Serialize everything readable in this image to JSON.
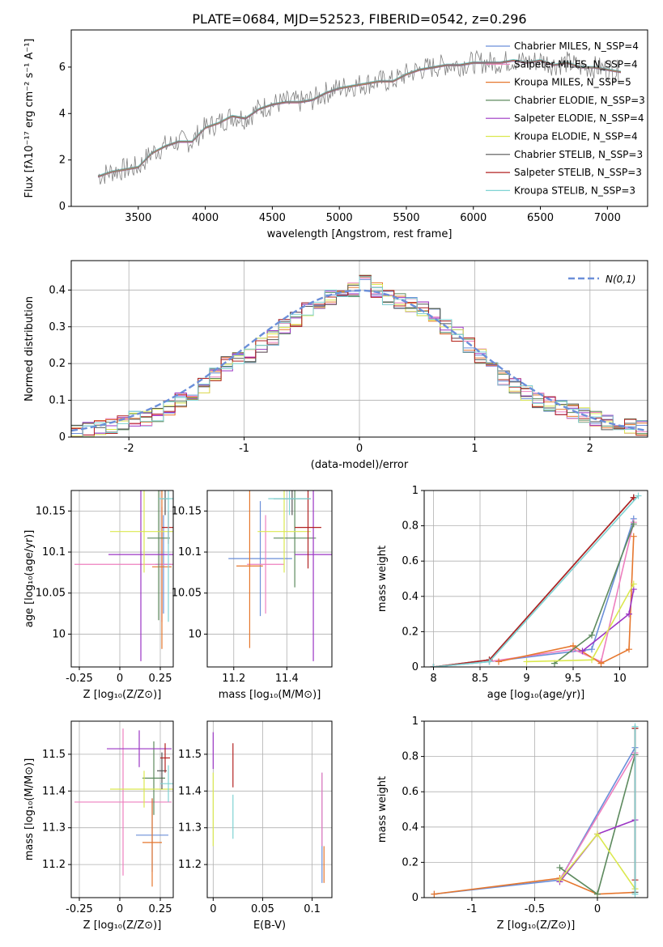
{
  "chart_data": [
    {
      "id": "spectrum",
      "type": "line",
      "title": "PLATE=0684, MJD=52523, FIBERID=0542, z=0.296",
      "xlabel": "wavelength [Angstrom, rest frame]",
      "ylabel": "Flux [fλ10⁻¹⁷ erg cm⁻² s⁻¹ A⁻¹]",
      "xlim": [
        3000,
        7300
      ],
      "ylim": [
        0,
        7.6
      ],
      "xticks": [
        3500,
        4000,
        4500,
        5000,
        5500,
        6000,
        6500,
        7000
      ],
      "yticks": [
        0,
        2,
        4,
        6
      ],
      "legend_position": "top-right",
      "grid": false,
      "data_series": {
        "name": "data",
        "x": [
          3200,
          3300,
          3400,
          3500,
          3600,
          3700,
          3800,
          3900,
          4000,
          4100,
          4200,
          4300,
          4400,
          4500,
          4600,
          4700,
          4800,
          4900,
          5000,
          5100,
          5200,
          5300,
          5400,
          5500,
          5600,
          5700,
          5800,
          5900,
          6000,
          6100,
          6200,
          6300,
          6400,
          6500,
          6600,
          6700,
          6800,
          6900,
          7000,
          7100
        ],
        "y": [
          1.3,
          1.5,
          1.6,
          1.7,
          2.3,
          2.6,
          2.8,
          2.8,
          3.4,
          3.6,
          3.9,
          3.8,
          4.2,
          4.4,
          4.5,
          4.5,
          4.6,
          4.9,
          5.1,
          5.2,
          5.3,
          5.4,
          5.4,
          5.7,
          5.9,
          6.0,
          6.1,
          6.1,
          6.2,
          6.2,
          6.2,
          6.3,
          6.2,
          6.3,
          6.1,
          6.2,
          6.0,
          6.0,
          5.9,
          5.8
        ]
      },
      "model_series": [
        {
          "name": "Chabrier MILES, N_SSP=4",
          "color": "#6b8fd9"
        },
        {
          "name": "Salpeter MILES, N_SSP=4",
          "color": "#ee7fbf"
        },
        {
          "name": "Kroupa MILES, N_SSP=5",
          "color": "#e6772e"
        },
        {
          "name": "Chabrier ELODIE, N_SSP=3",
          "color": "#5d8a5e"
        },
        {
          "name": "Salpeter ELODIE, N_SSP=4",
          "color": "#9b35c4"
        },
        {
          "name": "Kroupa ELODIE, N_SSP=4",
          "color": "#dbe84f"
        },
        {
          "name": "Chabrier STELIB, N_SSP=3",
          "color": "#555555"
        },
        {
          "name": "Salpeter STELIB, N_SSP=3",
          "color": "#b22222"
        },
        {
          "name": "Kroupa STELIB, N_SSP=3",
          "color": "#7fd3d3"
        }
      ]
    },
    {
      "id": "residuals",
      "type": "line",
      "xlabel": "(data-model)/error",
      "ylabel": "Normed distribution",
      "xlim": [
        -2.5,
        2.5
      ],
      "ylim": [
        0,
        0.48
      ],
      "xticks": [
        -2,
        -1,
        0,
        1,
        2
      ],
      "yticks": [
        0.0,
        0.1,
        0.2,
        0.3,
        0.4
      ],
      "grid": true,
      "legend_position": "top-right",
      "gaussian": {
        "name": "N(0,1)",
        "mean": 0,
        "sigma": 1,
        "color": "#6b8fd9"
      },
      "hist_edges": [
        -2.5,
        -2.4,
        -2.3,
        -2.2,
        -2.1,
        -2.0,
        -1.9,
        -1.8,
        -1.7,
        -1.6,
        -1.5,
        -1.4,
        -1.3,
        -1.2,
        -1.1,
        -1.0,
        -0.9,
        -0.8,
        -0.7,
        -0.6,
        -0.5,
        -0.4,
        -0.3,
        -0.2,
        -0.1,
        0.0,
        0.1,
        0.2,
        0.3,
        0.4,
        0.5,
        0.6,
        0.7,
        0.8,
        0.9,
        1.0,
        1.1,
        1.2,
        1.3,
        1.4,
        1.5,
        1.6,
        1.7,
        1.8,
        1.9,
        2.0,
        2.1,
        2.2,
        2.3,
        2.4,
        2.5
      ],
      "hist_values": [
        0.015,
        0.02,
        0.025,
        0.03,
        0.04,
        0.05,
        0.05,
        0.06,
        0.08,
        0.1,
        0.12,
        0.14,
        0.17,
        0.2,
        0.21,
        0.22,
        0.25,
        0.27,
        0.3,
        0.32,
        0.35,
        0.37,
        0.38,
        0.39,
        0.4,
        0.42,
        0.4,
        0.38,
        0.37,
        0.36,
        0.35,
        0.33,
        0.3,
        0.28,
        0.25,
        0.22,
        0.19,
        0.16,
        0.14,
        0.12,
        0.1,
        0.09,
        0.08,
        0.07,
        0.06,
        0.05,
        0.04,
        0.035,
        0.03,
        0.025
      ]
    },
    {
      "id": "age-vs-Z",
      "type": "scatter",
      "xlabel": "Z [log₁₀(Z/Z⊙)]",
      "ylabel": "age  [log₁₀(age/yr)]",
      "xlim": [
        -0.3,
        0.33
      ],
      "ylim": [
        9.96,
        10.175
      ],
      "xticks": [
        -0.25,
        0.0,
        0.25
      ],
      "yticks": [
        10.0,
        10.05,
        10.1,
        10.15
      ],
      "grid": true,
      "points": [
        {
          "series": "Chabrier MILES",
          "x": 0.27,
          "y": 10.085,
          "xerr": 0.05,
          "yerr": 0.06
        },
        {
          "series": "Salpeter MILES",
          "x": 0.26,
          "y": 10.085,
          "xerr": 0.54,
          "yerr": 0.07
        },
        {
          "series": "Kroupa MILES",
          "x": 0.26,
          "y": 10.082,
          "xerr": 0.06,
          "yerr": 0.1
        },
        {
          "series": "Chabrier ELODIE",
          "x": 0.24,
          "y": 10.117,
          "xerr": 0.07,
          "yerr": 0.1
        },
        {
          "series": "Salpeter ELODIE",
          "x": 0.13,
          "y": 10.097,
          "xerr": 0.2,
          "yerr": 0.13
        },
        {
          "series": "Kroupa ELODIE",
          "x": 0.15,
          "y": 10.125,
          "xerr": 0.21,
          "yerr": 0.05
        },
        {
          "series": "Chabrier STELIB",
          "x": 0.28,
          "y": 10.165,
          "xerr": 0.02,
          "yerr": 0.02
        },
        {
          "series": "Salpeter STELIB",
          "x": 0.3,
          "y": 10.13,
          "xerr": 0.04,
          "yerr": 0.02
        },
        {
          "series": "Kroupa STELIB",
          "x": 0.3,
          "y": 10.165,
          "xerr": 0.06,
          "yerr": 0.15
        }
      ]
    },
    {
      "id": "age-vs-mass",
      "type": "scatter",
      "xlabel": "mass [log₁₀(M/M⊙)]",
      "xlim": [
        11.1,
        11.57
      ],
      "ylim": [
        9.96,
        10.175
      ],
      "xticks": [
        11.2,
        11.4
      ],
      "yticks": [
        10.0,
        10.05,
        10.1,
        10.15
      ],
      "grid": true,
      "points": [
        {
          "series": "Chabrier MILES",
          "x": 11.3,
          "y": 10.092,
          "xerr": 0.12,
          "yerr": 0.07
        },
        {
          "series": "Salpeter MILES",
          "x": 11.32,
          "y": 10.085,
          "xerr": 0.07,
          "yerr": 0.06
        },
        {
          "series": "Kroupa MILES",
          "x": 11.26,
          "y": 10.083,
          "xerr": 0.05,
          "yerr": 0.1
        },
        {
          "series": "Chabrier ELODIE",
          "x": 11.43,
          "y": 10.117,
          "xerr": 0.08,
          "yerr": 0.06
        },
        {
          "series": "Salpeter ELODIE",
          "x": 11.5,
          "y": 10.097,
          "xerr": 0.07,
          "yerr": 0.13
        },
        {
          "series": "Kroupa ELODIE",
          "x": 11.39,
          "y": 10.125,
          "xerr": 0.1,
          "yerr": 0.05
        },
        {
          "series": "Chabrier STELIB",
          "x": 11.42,
          "y": 10.165,
          "xerr": 0.07,
          "yerr": 0.02
        },
        {
          "series": "Salpeter STELIB",
          "x": 11.48,
          "y": 10.13,
          "xerr": 0.05,
          "yerr": 0.05
        },
        {
          "series": "Kroupa STELIB",
          "x": 11.41,
          "y": 10.165,
          "xerr": 0.08,
          "yerr": 0.02
        }
      ]
    },
    {
      "id": "mass-weight-vs-age",
      "type": "line",
      "xlabel": "age  [log₁₀(age/yr)]",
      "ylabel": "mass weight",
      "xlim": [
        7.9,
        10.3
      ],
      "ylim": [
        0.0,
        1.0
      ],
      "xticks": [
        8.0,
        8.5,
        9.0,
        9.5,
        10.0
      ],
      "yticks": [
        0.0,
        0.2,
        0.4,
        0.6,
        0.8,
        1.0
      ],
      "grid": true,
      "series": [
        {
          "name": "Chabrier MILES",
          "x": [
            8.0,
            8.6,
            9.7,
            10.15
          ],
          "y": [
            0.0,
            0.03,
            0.1,
            0.84
          ]
        },
        {
          "name": "Salpeter MILES",
          "x": [
            8.6,
            9.5,
            9.8,
            10.15
          ],
          "y": [
            0.03,
            0.1,
            0.03,
            0.82
          ]
        },
        {
          "name": "Kroupa MILES",
          "x": [
            8.7,
            9.5,
            9.8,
            10.1,
            10.15
          ],
          "y": [
            0.03,
            0.12,
            0.02,
            0.1,
            0.74
          ]
        },
        {
          "name": "Chabrier ELODIE",
          "x": [
            9.3,
            9.7,
            10.15
          ],
          "y": [
            0.02,
            0.18,
            0.81
          ]
        },
        {
          "name": "Salpeter ELODIE",
          "x": [
            9.6,
            10.1,
            10.15
          ],
          "y": [
            0.09,
            0.3,
            0.44
          ]
        },
        {
          "name": "Kroupa ELODIE",
          "x": [
            9.0,
            9.7,
            10.15
          ],
          "y": [
            0.03,
            0.04,
            0.47
          ]
        },
        {
          "name": "Chabrier STELIB",
          "x": [
            8.0,
            8.6,
            10.15
          ],
          "y": [
            0.0,
            0.04,
            0.96
          ]
        },
        {
          "name": "Salpeter STELIB",
          "x": [
            8.0,
            8.6,
            10.15
          ],
          "y": [
            0.0,
            0.04,
            0.96
          ]
        },
        {
          "name": "Kroupa STELIB",
          "x": [
            8.0,
            8.6,
            10.2
          ],
          "y": [
            0.0,
            0.03,
            0.97
          ]
        }
      ]
    },
    {
      "id": "mass-vs-Z",
      "type": "scatter",
      "xlabel": "Z [log₁₀(Z/Z⊙)]",
      "ylabel": "mass [log₁₀(M/M⊙)]",
      "xlim": [
        -0.3,
        0.33
      ],
      "ylim": [
        11.11,
        11.59
      ],
      "xticks": [
        -0.25,
        0.0,
        0.25
      ],
      "yticks": [
        11.2,
        11.3,
        11.4,
        11.5
      ],
      "grid": true,
      "points": [
        {
          "series": "Chabrier MILES",
          "x": 0.2,
          "y": 11.28,
          "xerr": 0.1,
          "yerr": 0.1
        },
        {
          "series": "Salpeter MILES",
          "x": 0.02,
          "y": 11.37,
          "xerr": 0.3,
          "yerr": 0.2
        },
        {
          "series": "Kroupa MILES",
          "x": 0.2,
          "y": 11.26,
          "xerr": 0.06,
          "yerr": 0.12
        },
        {
          "series": "Chabrier ELODIE",
          "x": 0.21,
          "y": 11.435,
          "xerr": 0.07,
          "yerr": 0.1
        },
        {
          "series": "Salpeter ELODIE",
          "x": 0.12,
          "y": 11.515,
          "xerr": 0.2,
          "yerr": 0.05
        },
        {
          "series": "Kroupa ELODIE",
          "x": 0.15,
          "y": 11.405,
          "xerr": 0.21,
          "yerr": 0.05
        },
        {
          "series": "Chabrier STELIB",
          "x": 0.26,
          "y": 11.455,
          "xerr": 0.03,
          "yerr": 0.05
        },
        {
          "series": "Salpeter STELIB",
          "x": 0.28,
          "y": 11.49,
          "xerr": 0.03,
          "yerr": 0.04
        },
        {
          "series": "Kroupa STELIB",
          "x": 0.3,
          "y": 11.42,
          "xerr": 0.05,
          "yerr": 0.05
        }
      ]
    },
    {
      "id": "mass-vs-EBV",
      "type": "scatter",
      "xlabel": "E(B-V)",
      "xlim": [
        -0.006,
        0.12
      ],
      "ylim": [
        11.11,
        11.59
      ],
      "xticks": [
        0.0,
        0.05,
        0.1
      ],
      "yticks": [
        11.2,
        11.3,
        11.4,
        11.5
      ],
      "grid": true,
      "points": [
        {
          "series": "Chabrier MILES",
          "x": 0.11,
          "y": 11.3,
          "xerr": 0.0,
          "yerr": 0.15
        },
        {
          "series": "Salpeter MILES",
          "x": 0.11,
          "y": 11.35,
          "xerr": 0.0,
          "yerr": 0.1
        },
        {
          "series": "Kroupa MILES",
          "x": 0.112,
          "y": 11.2,
          "xerr": 0.0,
          "yerr": 0.05
        },
        {
          "series": "Salpeter ELODIE",
          "x": 0.0,
          "y": 11.51,
          "xerr": 0.0,
          "yerr": 0.05
        },
        {
          "series": "Kroupa ELODIE",
          "x": 0.0,
          "y": 11.35,
          "xerr": 0.0,
          "yerr": 0.1
        },
        {
          "series": "Salpeter STELIB",
          "x": 0.02,
          "y": 11.47,
          "xerr": 0.0,
          "yerr": 0.06
        },
        {
          "series": "Kroupa STELIB",
          "x": 0.02,
          "y": 11.33,
          "xerr": 0.0,
          "yerr": 0.06
        }
      ]
    },
    {
      "id": "mass-weight-vs-Z",
      "type": "line",
      "xlabel": "Z [log₁₀(Z/Z⊙)]",
      "ylabel": "mass weight",
      "xlim": [
        -1.38,
        0.4
      ],
      "ylim": [
        0.0,
        1.0
      ],
      "xticks": [
        -1.0,
        -0.5,
        0.0
      ],
      "yticks": [
        0.0,
        0.2,
        0.4,
        0.6,
        0.8,
        1.0
      ],
      "grid": true,
      "series": [
        {
          "name": "Chabrier MILES",
          "x": [
            -1.3,
            -0.3,
            0.3
          ],
          "y": [
            0.02,
            0.1,
            0.85
          ]
        },
        {
          "name": "Salpeter MILES",
          "x": [
            -0.3,
            0.3
          ],
          "y": [
            0.1,
            0.82
          ]
        },
        {
          "name": "Kroupa MILES",
          "x": [
            -1.3,
            -0.3,
            0.0,
            0.3
          ],
          "y": [
            0.02,
            0.11,
            0.02,
            0.03
          ]
        },
        {
          "name": "Chabrier ELODIE",
          "x": [
            -0.3,
            0.0,
            0.3
          ],
          "y": [
            0.17,
            0.02,
            0.81
          ]
        },
        {
          "name": "Salpeter ELODIE",
          "x": [
            -0.3,
            0.0,
            0.3
          ],
          "y": [
            0.09,
            0.36,
            0.44
          ]
        },
        {
          "name": "Kroupa ELODIE",
          "x": [
            -0.3,
            0.0,
            0.3
          ],
          "y": [
            0.1,
            0.36,
            0.05
          ]
        },
        {
          "name": "Chabrier STELIB",
          "x": [
            0.3,
            0.3
          ],
          "y": [
            0.03,
            0.96
          ]
        },
        {
          "name": "Salpeter STELIB",
          "x": [
            0.3,
            0.3
          ],
          "y": [
            0.1,
            0.96
          ]
        },
        {
          "name": "Kroupa STELIB",
          "x": [
            0.3,
            0.3
          ],
          "y": [
            0.02,
            0.97
          ]
        }
      ]
    }
  ]
}
